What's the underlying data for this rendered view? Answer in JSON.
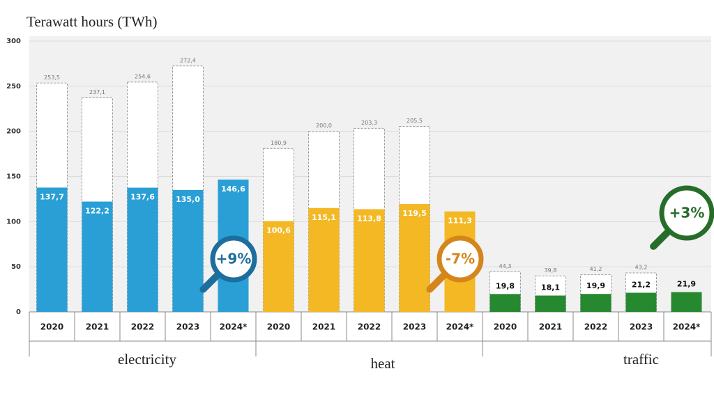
{
  "chart_data": {
    "type": "bar",
    "title": "Terawatt hours (TWh)",
    "ylim": [
      0,
      300
    ],
    "yticks": [
      0,
      50,
      100,
      150,
      200,
      250,
      300
    ],
    "grid": true,
    "groups": [
      {
        "name": "electricity",
        "color": "#2a9fd6",
        "badge_color": "#1c6e9c",
        "change": "+9%",
        "categories": [
          "2020",
          "2021",
          "2022",
          "2023",
          "2024*"
        ],
        "values": [
          137.7,
          122.2,
          137.6,
          135.0,
          146.6
        ],
        "value_labels": [
          "137,7",
          "122,2",
          "137,6",
          "135,0",
          "146,6"
        ],
        "totals": [
          253.5,
          237.1,
          254.6,
          272.4,
          null
        ],
        "total_labels": [
          "253,5",
          "237,1",
          "254,6",
          "272,4",
          null
        ]
      },
      {
        "name": "heat",
        "color": "#f3b824",
        "badge_color": "#d4861c",
        "change": "-7%",
        "categories": [
          "2020",
          "2021",
          "2022",
          "2023",
          "2024*"
        ],
        "values": [
          100.6,
          115.1,
          113.8,
          119.5,
          111.3
        ],
        "value_labels": [
          "100,6",
          "115,1",
          "113,8",
          "119,5",
          "111,3"
        ],
        "totals": [
          180.9,
          200.0,
          203.3,
          205.5,
          null
        ],
        "total_labels": [
          "180,9",
          "200,0",
          "203,3",
          "205,5",
          null
        ]
      },
      {
        "name": "traffic",
        "color": "#27892f",
        "badge_color": "#276d2a",
        "change": "+3%",
        "categories": [
          "2020",
          "2021",
          "2022",
          "2023",
          "2024*"
        ],
        "values": [
          19.8,
          18.1,
          19.9,
          21.2,
          21.9
        ],
        "value_labels": [
          "19,8",
          "18,1",
          "19,9",
          "21,2",
          "21,9"
        ],
        "totals": [
          44.3,
          39.8,
          41.2,
          43.2,
          null
        ],
        "total_labels": [
          "44,3",
          "39,8",
          "41,2",
          "43,2",
          null
        ]
      }
    ]
  }
}
